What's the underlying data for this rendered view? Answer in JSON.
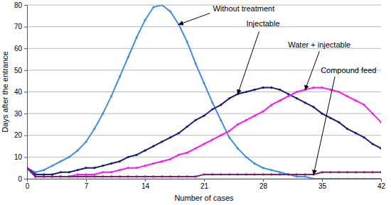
{
  "chart_data": {
    "type": "line",
    "x_label": "Number of cases",
    "y_label": "Days after the entrance",
    "x": [
      0,
      1,
      2,
      3,
      4,
      5,
      6,
      7,
      8,
      9,
      10,
      11,
      12,
      13,
      14,
      15,
      16,
      17,
      18,
      19,
      20,
      21,
      22,
      23,
      24,
      25,
      26,
      27,
      28,
      29,
      30,
      31,
      32,
      33,
      34,
      35,
      36,
      37,
      38,
      39,
      40,
      41,
      42
    ],
    "xlim": [
      0,
      42
    ],
    "xticks": [
      0,
      7,
      14,
      21,
      28,
      35,
      42
    ],
    "ylim": [
      0,
      80
    ],
    "yticks": [
      0,
      10,
      20,
      30,
      40,
      50,
      60,
      70,
      80
    ],
    "grid": true,
    "series": [
      {
        "name": "Without treatment",
        "color": "#3d8fe0",
        "marker": "circle",
        "values": [
          5,
          3,
          4,
          6,
          8,
          10,
          13,
          17,
          23,
          30,
          38,
          47,
          56,
          65,
          73,
          79,
          80,
          77,
          71,
          63,
          53,
          44,
          35,
          27,
          19,
          14,
          10,
          7,
          5,
          4,
          3,
          2,
          1,
          1,
          0,
          0,
          0,
          0,
          0,
          0,
          0,
          0,
          0
        ]
      },
      {
        "name": "Injectable",
        "color": "#1c1c7a",
        "marker": "circle",
        "values": [
          5,
          2,
          2,
          2,
          3,
          3,
          4,
          5,
          5,
          6,
          7,
          8,
          10,
          11,
          13,
          15,
          17,
          19,
          21,
          24,
          27,
          29,
          32,
          34,
          37,
          39,
          40,
          41,
          42,
          42,
          41,
          39,
          37,
          35,
          33,
          30,
          28,
          26,
          23,
          21,
          19,
          16,
          14
        ]
      },
      {
        "name": "Water + injectable",
        "color": "#f020f0",
        "marker": "circle",
        "values": [
          5,
          1,
          1,
          1,
          1,
          1,
          2,
          2,
          2,
          3,
          3,
          4,
          5,
          5,
          6,
          7,
          8,
          9,
          11,
          12,
          14,
          16,
          18,
          20,
          22,
          25,
          27,
          29,
          31,
          34,
          36,
          38,
          40,
          41,
          42,
          42,
          41,
          40,
          38,
          36,
          34,
          30,
          26
        ]
      },
      {
        "name": "Compound feed",
        "color": "#7a1f7a",
        "marker": "circle",
        "values": [
          5,
          1,
          1,
          1,
          1,
          1,
          1,
          1,
          1,
          1,
          1,
          1,
          1,
          1,
          1,
          1,
          1,
          1,
          1,
          1,
          1,
          2,
          2,
          2,
          2,
          2,
          2,
          2,
          2,
          2,
          2,
          2,
          2,
          2,
          2,
          3,
          3,
          3,
          3,
          3,
          3,
          3,
          3
        ]
      }
    ],
    "annotations": [
      {
        "text": "Without treatment",
        "x": 18,
        "y": 71
      },
      {
        "text": "Injectable",
        "x": 25,
        "y": 39
      },
      {
        "text": "Water + injectable",
        "x": 33,
        "y": 41
      },
      {
        "text": "Compound feed",
        "x": 34,
        "y": 2
      }
    ]
  }
}
